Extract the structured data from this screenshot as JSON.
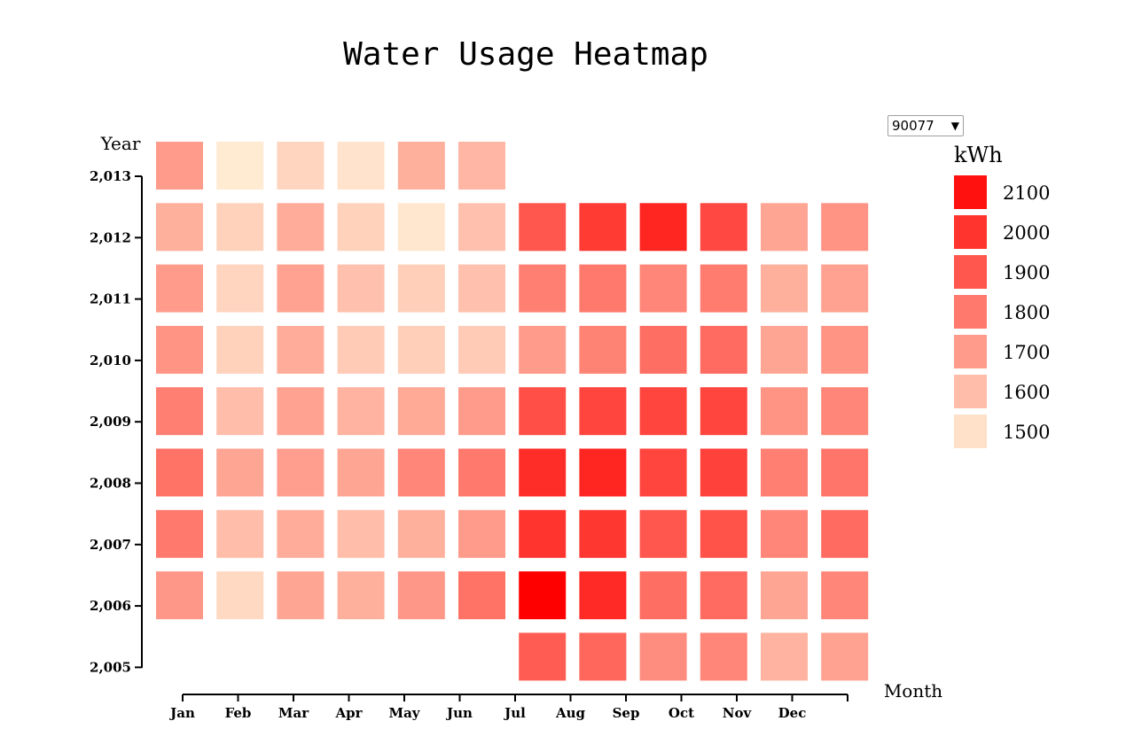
{
  "zip_select": {
    "value": "90077",
    "caret": "▼"
  },
  "chart_data": {
    "type": "heatmap",
    "title": "Water Usage Heatmap",
    "xlabel": "Month",
    "ylabel": "Year",
    "months": [
      "Jan",
      "Feb",
      "Mar",
      "Apr",
      "May",
      "Jun",
      "Jul",
      "Aug",
      "Sep",
      "Oct",
      "Nov",
      "Dec"
    ],
    "years": [
      2005,
      2006,
      2007,
      2008,
      2009,
      2010,
      2011,
      2012,
      2013
    ],
    "year_tick_labels": [
      "2,005",
      "2,006",
      "2,007",
      "2,008",
      "2,009",
      "2,010",
      "2,011",
      "2,012",
      "2,013"
    ],
    "legend_title": "kWh",
    "legend_values": [
      2100,
      2000,
      1900,
      1800,
      1700,
      1600,
      1500
    ],
    "color_range": {
      "min_value": 1450,
      "max_value": 2150,
      "low_color": "#fff1d8",
      "high_color": "#ff0000"
    },
    "rows": [
      {
        "year": 2013,
        "values": [
          1700,
          1470,
          1530,
          1490,
          1640,
          1620,
          null,
          null,
          null,
          null,
          null,
          null
        ]
      },
      {
        "year": 2012,
        "values": [
          1640,
          1540,
          1650,
          1540,
          1480,
          1590,
          1900,
          1980,
          2040,
          1940,
          1670,
          1720
        ]
      },
      {
        "year": 2011,
        "values": [
          1700,
          1530,
          1680,
          1590,
          1550,
          1590,
          1780,
          1800,
          1760,
          1790,
          1640,
          1680
        ]
      },
      {
        "year": 2010,
        "values": [
          1720,
          1540,
          1650,
          1560,
          1550,
          1560,
          1700,
          1770,
          1830,
          1840,
          1670,
          1720
        ]
      },
      {
        "year": 2009,
        "values": [
          1780,
          1600,
          1680,
          1630,
          1660,
          1700,
          1920,
          1950,
          1950,
          1950,
          1720,
          1760
        ]
      },
      {
        "year": 2008,
        "values": [
          1820,
          1670,
          1690,
          1670,
          1760,
          1800,
          2020,
          2040,
          1950,
          1960,
          1780,
          1810
        ]
      },
      {
        "year": 2007,
        "values": [
          1800,
          1600,
          1650,
          1600,
          1640,
          1700,
          2000,
          1990,
          1900,
          1910,
          1760,
          1840
        ]
      },
      {
        "year": 2006,
        "values": [
          1710,
          1520,
          1670,
          1640,
          1710,
          1820,
          2150,
          2030,
          1830,
          1840,
          1670,
          1760
        ]
      },
      {
        "year": 2005,
        "values": [
          null,
          null,
          null,
          null,
          null,
          null,
          1880,
          1850,
          1740,
          1760,
          1630,
          1680
        ]
      }
    ]
  }
}
